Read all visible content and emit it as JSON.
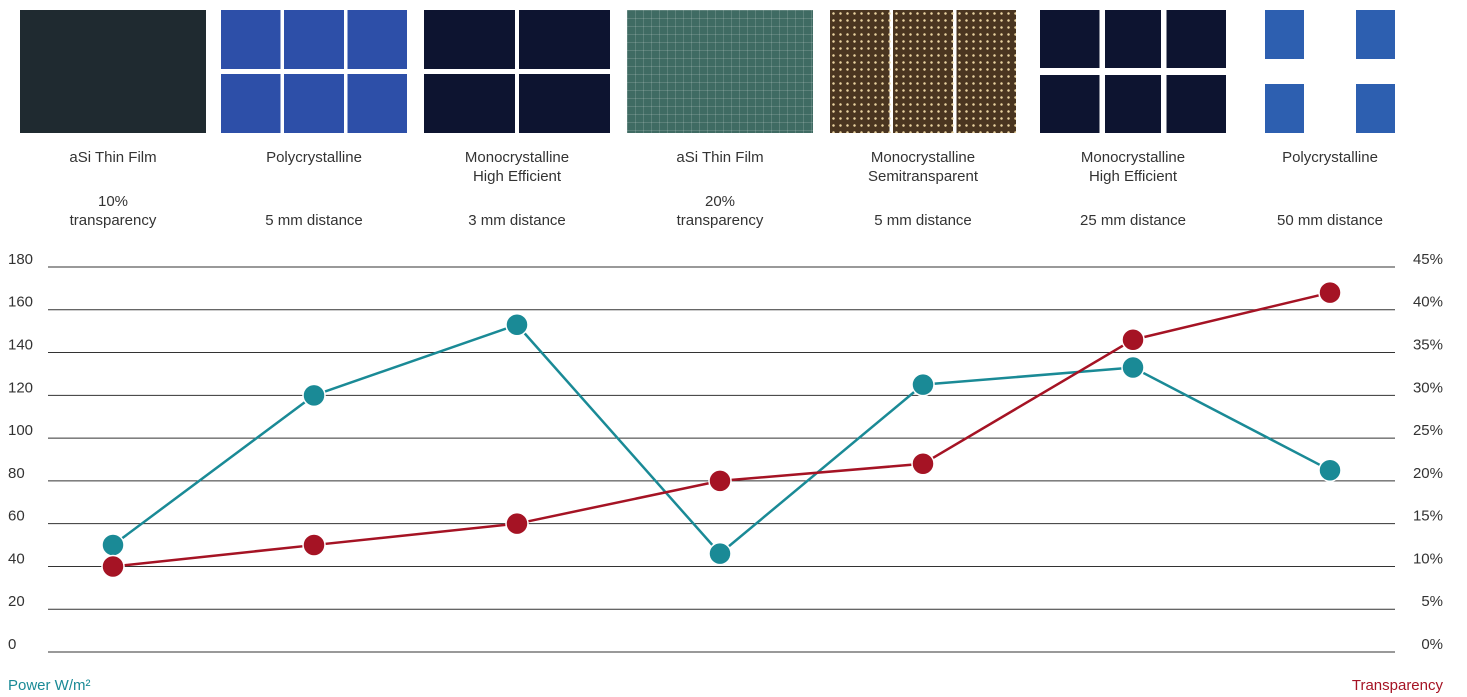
{
  "chart_data": {
    "type": "line",
    "categories": [
      "aSi Thin Film",
      "Polycrystalline",
      "Monocrystalline\nHigh Efficient",
      "aSi Thin Film",
      "Monocrystalline\nSemitransparent",
      "Monocrystalline\nHigh Efficient",
      "Polycrystalline"
    ],
    "details": [
      "10%\ntransparency",
      "5 mm distance",
      "3 mm distance",
      "20%\ntransparency",
      "5 mm distance",
      "25 mm distance",
      "50 mm distance"
    ],
    "series": [
      {
        "name": "Power W/m²",
        "color": "#1a8a96",
        "values": [
          50,
          120,
          153,
          46,
          125,
          133,
          85
        ]
      },
      {
        "name": "Transparency",
        "color": "#a51324",
        "axis": "y2",
        "values": [
          10,
          12.5,
          15,
          20,
          22,
          36.5,
          42
        ]
      }
    ],
    "ylabel": "Power W/m²",
    "y2label": "Transparency",
    "ylim": [
      0,
      180
    ],
    "yticks": [
      0,
      20,
      40,
      60,
      80,
      100,
      120,
      140,
      160,
      180
    ],
    "y2lim": [
      0,
      45
    ],
    "y2ticks": [
      {
        "value": 0,
        "label": "0%"
      },
      {
        "value": 5,
        "label": "5%"
      },
      {
        "value": 10,
        "label": "10%"
      },
      {
        "value": 15,
        "label": "15%"
      },
      {
        "value": 20,
        "label": "20%"
      },
      {
        "value": 25,
        "label": "25%"
      },
      {
        "value": 30,
        "label": "30%"
      },
      {
        "value": 35,
        "label": "35%"
      },
      {
        "value": 40,
        "label": "40%"
      },
      {
        "value": 45,
        "label": "45%"
      }
    ],
    "grid": true
  }
}
